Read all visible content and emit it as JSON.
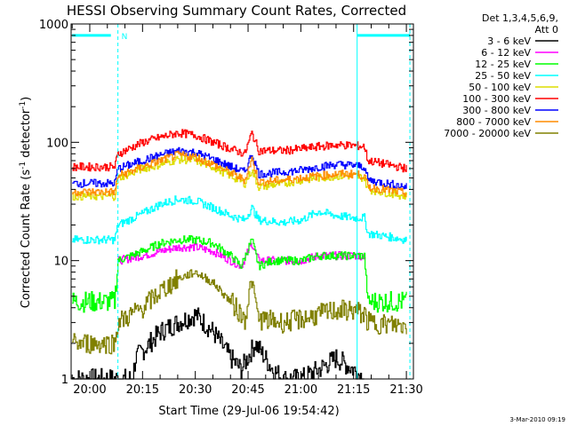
{
  "chart_data": {
    "type": "line",
    "title": "HESSI Observing Summary Count Rates, Corrected",
    "xlabel": "Start Time (29-Jul-06 19:54:42)",
    "ylabel_main": "Corrected Count Rate (s",
    "ylabel_sup1": "-1",
    "ylabel_mid": " detector",
    "ylabel_sup2": "-1",
    "ylabel_end": ")",
    "yscale": "log",
    "ylim": [
      1,
      1000
    ],
    "xlim": [
      "19:54:42",
      "21:32"
    ],
    "x_ticks": [
      "20:00",
      "20:15",
      "20:30",
      "20:45",
      "21:00",
      "21:15",
      "21:30"
    ],
    "y_ticks": [
      "1",
      "10",
      "100",
      "1000"
    ],
    "legend_header": [
      "Det 1,3,4,5,6,9,",
      "Att 0"
    ],
    "legend_position": "right",
    "timestamp": "3-Mar-2010 09:19",
    "marker_label": "N",
    "series": [
      {
        "name": "3 - 6 keV",
        "color": "#000000",
        "x": [
          "19:55",
          "20:12",
          "20:13",
          "20:20",
          "20:25",
          "20:30",
          "20:35",
          "20:40",
          "20:43",
          "20:47",
          "20:52",
          "20:55",
          "21:00",
          "21:05",
          "21:10",
          "21:15",
          "21:18"
        ],
        "y": [
          1,
          1,
          1.5,
          2.5,
          3,
          3.5,
          2.5,
          1.5,
          1.2,
          2,
          1.2,
          1,
          1,
          1.2,
          1.5,
          1.2,
          1
        ]
      },
      {
        "name": "6 - 12 keV",
        "color": "#ff00ff",
        "x": [
          "20:08",
          "20:15",
          "20:20",
          "20:25",
          "20:30",
          "20:35",
          "20:40",
          "20:43",
          "20:46",
          "20:48",
          "20:52",
          "21:00",
          "21:05",
          "21:10",
          "21:15",
          "21:18"
        ],
        "y": [
          10,
          11,
          12,
          13,
          13,
          12,
          10,
          9,
          14,
          10,
          10,
          10,
          11,
          11,
          11,
          11
        ]
      },
      {
        "name": "12 - 25 keV",
        "color": "#00ff00",
        "x": [
          "19:55",
          "20:07",
          "20:08",
          "20:15",
          "20:20",
          "20:25",
          "20:30",
          "20:35",
          "20:40",
          "20:43",
          "20:46",
          "20:48",
          "20:52",
          "21:00",
          "21:05",
          "21:10",
          "21:15",
          "21:18",
          "21:19",
          "21:30"
        ],
        "y": [
          4.5,
          4.5,
          10,
          12,
          14,
          15,
          15,
          14,
          11,
          9,
          15,
          9,
          10,
          10,
          11,
          11,
          11,
          11,
          4.5,
          4.5
        ]
      },
      {
        "name": "25 - 50 keV",
        "color": "#00ffff",
        "x": [
          "19:55",
          "20:07",
          "20:08",
          "20:15",
          "20:20",
          "20:25",
          "20:30",
          "20:35",
          "20:40",
          "20:44",
          "20:46",
          "20:48",
          "20:55",
          "21:00",
          "21:05",
          "21:10",
          "21:15",
          "21:18",
          "21:19",
          "21:30"
        ],
        "y": [
          15,
          15,
          20,
          25,
          30,
          33,
          32,
          28,
          24,
          22,
          28,
          22,
          21,
          22,
          26,
          24,
          23,
          23,
          17,
          15
        ]
      },
      {
        "name": "50 - 100 keV",
        "color": "#dddd00",
        "x": [
          "19:55",
          "20:07",
          "20:08",
          "20:15",
          "20:20",
          "20:25",
          "20:30",
          "20:35",
          "20:40",
          "20:44",
          "20:46",
          "20:48",
          "20:55",
          "21:00",
          "21:05",
          "21:10",
          "21:15",
          "21:18",
          "21:19",
          "21:30"
        ],
        "y": [
          35,
          35,
          50,
          60,
          65,
          72,
          70,
          62,
          52,
          45,
          58,
          42,
          45,
          48,
          50,
          52,
          52,
          50,
          40,
          35
        ]
      },
      {
        "name": "100 - 300 keV",
        "color": "#ff0000",
        "x": [
          "19:55",
          "20:07",
          "20:08",
          "20:15",
          "20:20",
          "20:25",
          "20:30",
          "20:35",
          "20:40",
          "20:44",
          "20:46",
          "20:48",
          "20:55",
          "21:00",
          "21:05",
          "21:10",
          "21:15",
          "21:18",
          "21:19",
          "21:30"
        ],
        "y": [
          62,
          62,
          80,
          100,
          110,
          120,
          115,
          100,
          88,
          80,
          120,
          85,
          85,
          88,
          92,
          95,
          94,
          92,
          70,
          60
        ]
      },
      {
        "name": "300 - 800 keV",
        "color": "#0000ff",
        "x": [
          "19:55",
          "20:07",
          "20:08",
          "20:15",
          "20:20",
          "20:25",
          "20:30",
          "20:35",
          "20:40",
          "20:44",
          "20:46",
          "20:48",
          "20:55",
          "21:00",
          "21:05",
          "21:10",
          "21:15",
          "21:18",
          "21:19",
          "21:30"
        ],
        "y": [
          45,
          45,
          60,
          70,
          78,
          85,
          82,
          72,
          62,
          56,
          80,
          54,
          56,
          58,
          62,
          65,
          64,
          62,
          48,
          42
        ]
      },
      {
        "name": "800 - 7000 keV",
        "color": "#ff8c00",
        "x": [
          "19:55",
          "20:07",
          "20:08",
          "20:15",
          "20:20",
          "20:25",
          "20:30",
          "20:35",
          "20:40",
          "20:44",
          "20:46",
          "20:48",
          "20:55",
          "21:00",
          "21:05",
          "21:10",
          "21:15",
          "21:18",
          "21:19",
          "21:30"
        ],
        "y": [
          38,
          38,
          52,
          62,
          70,
          78,
          75,
          65,
          55,
          48,
          72,
          46,
          48,
          50,
          52,
          54,
          54,
          52,
          42,
          37
        ]
      },
      {
        "name": "7000 - 20000 keV",
        "color": "#808000",
        "x": [
          "19:55",
          "20:07",
          "20:08",
          "20:15",
          "20:20",
          "20:25",
          "20:30",
          "20:35",
          "20:40",
          "20:44",
          "20:46",
          "20:48",
          "20:55",
          "21:00",
          "21:05",
          "21:10",
          "21:15",
          "21:18",
          "21:19",
          "21:30"
        ],
        "y": [
          2,
          2,
          3,
          4,
          5.5,
          7,
          8,
          6.5,
          4.5,
          3.2,
          7,
          3.2,
          3,
          3.2,
          3.5,
          3.8,
          3.8,
          3.5,
          3,
          2.8
        ]
      }
    ],
    "vertical_markers": [
      {
        "time": "20:08",
        "style": "dashed",
        "color": "#00ffff"
      },
      {
        "time": "21:16",
        "style": "solid",
        "color": "#00ffff"
      },
      {
        "time": "21:31",
        "style": "dashed",
        "color": "#00ffff"
      }
    ],
    "flag_bars": [
      {
        "start": "19:55",
        "end": "20:06",
        "value": 800,
        "color": "#00ffff"
      },
      {
        "start": "21:16",
        "end": "21:31",
        "value": 800,
        "color": "#00ffff"
      }
    ]
  }
}
